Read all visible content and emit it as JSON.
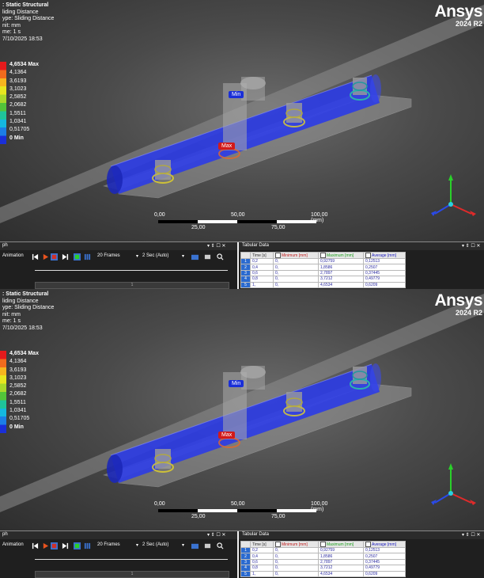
{
  "viewport": {
    "header": ": Static Structural",
    "info": [
      "liding Distance",
      "ype: Sliding Distance",
      "nit: mm",
      "me: 1 s",
      "7/10/2025 18:53"
    ]
  },
  "legend": {
    "values": [
      "4,6534 Max",
      "4,1364",
      "3,6193",
      "3,1023",
      "2,5852",
      "2,0682",
      "1,5511",
      "1,0341",
      "0,51705",
      "0 Min"
    ],
    "colors": [
      "#e41a1c",
      "#f26b1d",
      "#f6b51e",
      "#e7e61f",
      "#a8d92b",
      "#52c43a",
      "#1fc49a",
      "#14b8e0",
      "#1c7ee6",
      "#1a2fd8"
    ]
  },
  "brand": {
    "name": "Ansys",
    "version": "2024 R2"
  },
  "probes": {
    "min": "Min",
    "max": "Max"
  },
  "scale": {
    "top": [
      "0,00",
      "50,00",
      "100,00 (mm)"
    ],
    "bottom": [
      "25,00",
      "75,00"
    ]
  },
  "graph": {
    "title": "ph",
    "controls": "▾ ⇕ ☐ ✕",
    "animation_label": "Animation",
    "frames": "20 Frames",
    "duration": "2 Sec (Auto)",
    "slider_value": "1"
  },
  "tabular": {
    "title": "Tabular Data",
    "controls": "▾ ⇕ ☐ ✕",
    "headers": [
      "Time [s]",
      "Minimum [mm]",
      "Maximum [mm]",
      "Average [mm]"
    ],
    "rows": [
      [
        "1",
        "0,2",
        "0,",
        "0,92759",
        "0,12513"
      ],
      [
        "2",
        "0,4",
        "0,",
        "1,8586",
        "0,2507"
      ],
      [
        "3",
        "0,6",
        "0,",
        "2,7897",
        "0,37445"
      ],
      [
        "4",
        "0,8",
        "0,",
        "3,7212",
        "0,49779"
      ],
      [
        "5",
        "1,",
        "0,",
        "4,6534",
        "0,6209"
      ]
    ]
  },
  "colors": {
    "model_blue": "#2a3ae8",
    "accent_play": "#e8531f",
    "accent_stop": "#d0302a"
  }
}
